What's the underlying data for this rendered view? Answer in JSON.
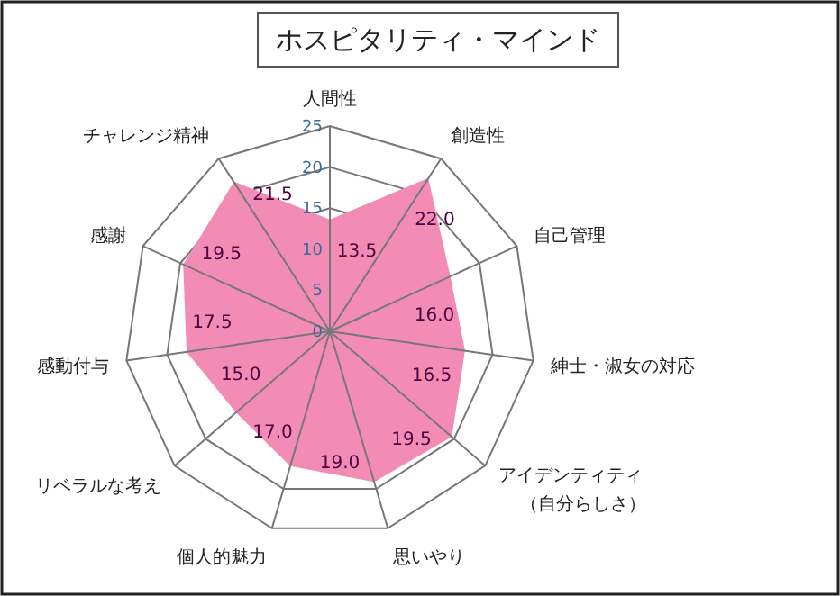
{
  "chart_data": {
    "type": "radar",
    "title": "ホスピタリティ・マインド",
    "categories": [
      "人間性",
      "創造性",
      "自己管理",
      "紳士・淑女の対応",
      "アイデンティティ（自分らしさ）",
      "思いやり",
      "個人的魅力",
      "リベラルな考え",
      "感動付与",
      "感謝",
      "チャレンジ精神"
    ],
    "series": [
      {
        "color": "#f28cb4",
        "values": [
          13.5,
          22.0,
          16.0,
          16.5,
          19.5,
          19.0,
          17.0,
          15.0,
          17.5,
          19.5,
          21.5
        ],
        "value_labels": [
          "13.5",
          "22.0",
          "16.0",
          "16.5",
          "19.5",
          "19.0",
          "17.0",
          "15.0",
          "17.5",
          "19.5",
          "21.5"
        ]
      }
    ],
    "ylim": [
      0,
      25
    ],
    "yticks": [
      0,
      5,
      10,
      15,
      20,
      25
    ]
  }
}
